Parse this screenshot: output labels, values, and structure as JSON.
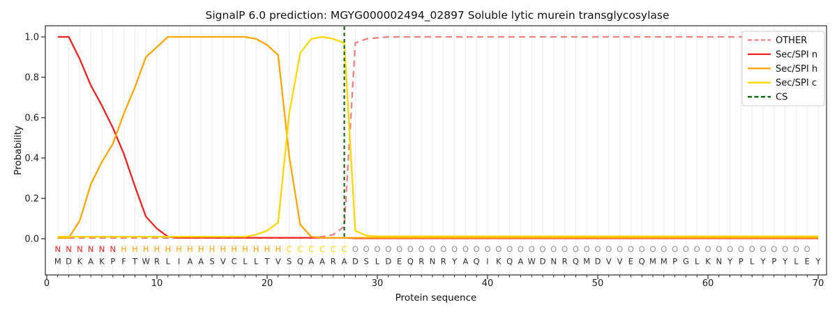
{
  "chart_data": {
    "type": "line",
    "title": "SignalP 6.0 prediction: MGYG000002494_02897 Soluble lytic murein transglycosylase",
    "xlabel": "Protein sequence",
    "ylabel": "Probability",
    "xticks": [
      0,
      10,
      20,
      30,
      40,
      50,
      60,
      70
    ],
    "yticks": [
      1.0,
      0.8,
      0.6,
      0.4,
      0.2,
      0.0
    ],
    "xlim": [
      -0.15,
      70.8
    ],
    "ylim": [
      -0.18,
      1.055
    ],
    "grid": "vertical light-gray line at every residue position",
    "legend_position": "upper right",
    "x_start": 1,
    "series": [
      {
        "name": "OTHER",
        "color": "#f08080",
        "dashed": true,
        "values": [
          0.004,
          0.004,
          0.004,
          0.004,
          0.004,
          0.004,
          0.004,
          0.004,
          0.004,
          0.004,
          0.004,
          0.004,
          0.004,
          0.004,
          0.004,
          0.004,
          0.004,
          0.004,
          0.004,
          0.004,
          0.004,
          0.004,
          0.004,
          0.004,
          0.01,
          0.02,
          0.06,
          0.97,
          0.99,
          0.995,
          1.0,
          1.0,
          1.0,
          1.0,
          1.0,
          1.0,
          1.0,
          1.0,
          1.0,
          1.0,
          1.0,
          1.0,
          1.0,
          1.0,
          1.0,
          1.0,
          1.0,
          1.0,
          1.0,
          1.0,
          1.0,
          1.0,
          1.0,
          1.0,
          1.0,
          1.0,
          1.0,
          1.0,
          1.0,
          1.0,
          1.0,
          1.0,
          1.0,
          1.0,
          1.0,
          1.0,
          1.0,
          1.0,
          1.0,
          1.0
        ]
      },
      {
        "name": "Sec/SPI n",
        "color": "#ee2222",
        "dashed": false,
        "values": [
          1.0,
          1.0,
          0.89,
          0.76,
          0.66,
          0.55,
          0.42,
          0.26,
          0.11,
          0.05,
          0.01,
          0.005,
          0.005,
          0.005,
          0.005,
          0.005,
          0.005,
          0.005,
          0.005,
          0.005,
          0.005,
          0.005,
          0.005,
          0.005,
          0.005,
          0.005,
          0.005,
          0.002,
          0.002,
          0.002,
          0.002,
          0.002,
          0.002,
          0.002,
          0.002,
          0.002,
          0.002,
          0.002,
          0.002,
          0.002,
          0.002,
          0.002,
          0.002,
          0.002,
          0.002,
          0.002,
          0.002,
          0.002,
          0.002,
          0.002,
          0.002,
          0.002,
          0.002,
          0.002,
          0.002,
          0.002,
          0.002,
          0.002,
          0.002,
          0.002,
          0.002,
          0.002,
          0.002,
          0.002,
          0.002,
          0.002,
          0.002,
          0.002,
          0.002,
          0.002
        ]
      },
      {
        "name": "Sec/SPI h",
        "color": "#ffa500",
        "dashed": false,
        "values": [
          0.003,
          0.005,
          0.09,
          0.27,
          0.38,
          0.47,
          0.62,
          0.75,
          0.9,
          0.95,
          1.0,
          1.0,
          1.0,
          1.0,
          1.0,
          1.0,
          1.0,
          1.0,
          0.99,
          0.96,
          0.91,
          0.41,
          0.07,
          0.01,
          0.005,
          0.005,
          0.005,
          0.005,
          0.005,
          0.005,
          0.005,
          0.005,
          0.005,
          0.005,
          0.005,
          0.005,
          0.005,
          0.005,
          0.005,
          0.005,
          0.005,
          0.005,
          0.005,
          0.005,
          0.005,
          0.005,
          0.005,
          0.005,
          0.005,
          0.005,
          0.005,
          0.005,
          0.005,
          0.005,
          0.005,
          0.005,
          0.005,
          0.005,
          0.005,
          0.005,
          0.005,
          0.005,
          0.005,
          0.005,
          0.005,
          0.005,
          0.005,
          0.005,
          0.005,
          0.005
        ]
      },
      {
        "name": "Sec/SPI c",
        "color": "#ffd700",
        "dashed": false,
        "values": [
          0.01,
          0.01,
          0.01,
          0.01,
          0.01,
          0.01,
          0.01,
          0.01,
          0.01,
          0.01,
          0.01,
          0.01,
          0.01,
          0.01,
          0.01,
          0.01,
          0.01,
          0.01,
          0.02,
          0.04,
          0.08,
          0.62,
          0.92,
          0.99,
          1.0,
          0.99,
          0.97,
          0.04,
          0.015,
          0.012,
          0.012,
          0.012,
          0.012,
          0.012,
          0.012,
          0.012,
          0.012,
          0.012,
          0.012,
          0.012,
          0.012,
          0.012,
          0.012,
          0.012,
          0.012,
          0.012,
          0.012,
          0.012,
          0.012,
          0.012,
          0.012,
          0.012,
          0.012,
          0.012,
          0.012,
          0.012,
          0.012,
          0.012,
          0.012,
          0.012,
          0.012,
          0.012,
          0.012,
          0.012,
          0.012,
          0.012,
          0.012,
          0.012,
          0.012,
          0.012
        ]
      }
    ],
    "cs_line": {
      "name": "CS",
      "color": "#006400",
      "dashed": true,
      "position": 27
    }
  },
  "sequence": {
    "residues": "MDKAKPFTWRLIAASVCLLTVSQAARADSLDEQRNRYAQIKQAWDNRQMDVVEQMMPGLKNYPLYPYLEY",
    "regions": "NNNNNNHHHHHHHHHHHHHHHCCCCCCOOOOOOOOOOOOOOOOOOOOOOOOOOOOOOOOOOOOOOOOOO",
    "region_colors": {
      "N": "#ee2222",
      "H": "#ffa500",
      "C": "#ffd700",
      "O": "#8f8f8f"
    },
    "residue_color": "#303030"
  },
  "style": {
    "grid_color": "#ececec",
    "spine_color": "#000000",
    "legend_border": "#cccccc",
    "legend_bg": "#ffffff"
  }
}
